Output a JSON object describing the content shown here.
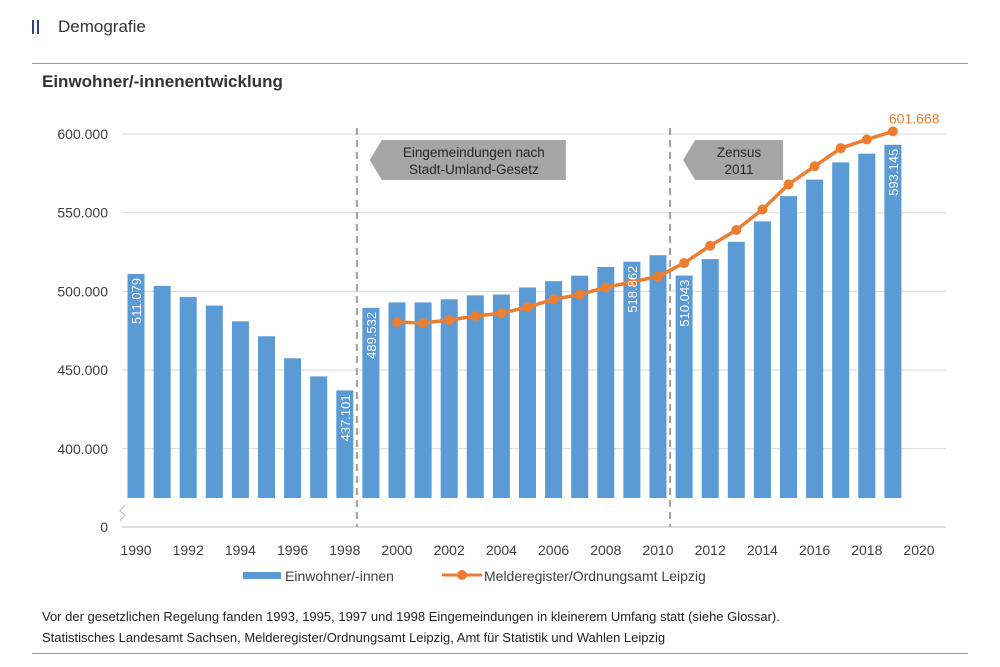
{
  "section": {
    "title": "Demografie",
    "icon": "section-marker-icon"
  },
  "chart_title": "Einwohner/-innenentwicklung",
  "colors": {
    "bars": "#5b9bd5",
    "line": "#ed7d31",
    "grid": "#d9d9d9",
    "annotation_fill": "#a6a6a6",
    "divider": "#8a9bb8"
  },
  "annotations": [
    {
      "text_line1": "Eingemeindungen nach",
      "text_line2": "Stadt-Umland-Gesetz",
      "at_year": 1998.5
    },
    {
      "text_line1": "Zensus",
      "text_line2": "2011",
      "at_year": 2010.5
    }
  ],
  "legend": {
    "bars_label": "Einwohner/-innen",
    "line_label": "Melderegister/Ordnungsamt Leipzig"
  },
  "footnote": {
    "line1": "Vor der gesetzlichen Regelung fanden 1993, 1995, 1997 und 1998 Eingemeindungen in kleinerem Umfang statt (siehe Glossar).",
    "line2": "Statistisches Landesamt Sachsen, Melderegister/Ordnungsamt Leipzig, Amt für Statistik und Wahlen Leipzig"
  },
  "chart_data": {
    "type": "bar",
    "title": "Einwohner/-innenentwicklung",
    "xlabel": "",
    "ylabel": "",
    "ylim": [
      0,
      600000
    ],
    "axis_break": true,
    "y_ticks": [
      0,
      400000,
      450000,
      500000,
      550000,
      600000
    ],
    "y_tick_labels": [
      "0",
      "400.000",
      "450.000",
      "500.000",
      "550.000",
      "600.000"
    ],
    "x_ticks": [
      1990,
      1992,
      1994,
      1996,
      1998,
      2000,
      2002,
      2004,
      2006,
      2008,
      2010,
      2012,
      2014,
      2016,
      2018,
      2020
    ],
    "x_tick_labels": [
      "1990",
      "1992",
      "1994",
      "1996",
      "1998",
      "2000",
      "2002",
      "2004",
      "2006",
      "2008",
      "2010",
      "2012",
      "2014",
      "2016",
      "2018",
      "2020"
    ],
    "grid": true,
    "legend_position": "bottom",
    "series": [
      {
        "name": "Einwohner/-innen",
        "type": "bar",
        "x": [
          1990,
          1991,
          1992,
          1993,
          1994,
          1995,
          1996,
          1997,
          1998,
          1999,
          2000,
          2001,
          2002,
          2003,
          2004,
          2005,
          2006,
          2007,
          2008,
          2009,
          2010,
          2011,
          2012,
          2013,
          2014,
          2015,
          2016,
          2017,
          2018,
          2019
        ],
        "values": [
          511079,
          503500,
          496500,
          491000,
          481000,
          471500,
          457500,
          446000,
          437101,
          489532,
          493000,
          493000,
          495000,
          497500,
          498000,
          502500,
          506500,
          510000,
          515500,
          518862,
          523000,
          510043,
          520500,
          531500,
          544500,
          560500,
          571000,
          582000,
          587500,
          593145
        ],
        "labels": {
          "1990": "511.079",
          "1998": "437.101",
          "1999": "489.532",
          "2009": "518.862",
          "2011": "510.043",
          "2019": "593.145"
        }
      },
      {
        "name": "Melderegister/Ordnungsamt Leipzig",
        "type": "line",
        "x": [
          2000,
          2001,
          2002,
          2003,
          2004,
          2005,
          2006,
          2007,
          2008,
          2009,
          2010,
          2011,
          2012,
          2013,
          2014,
          2015,
          2016,
          2017,
          2018,
          2019
        ],
        "values": [
          480500,
          479900,
          481800,
          484300,
          486200,
          490000,
          495000,
          498000,
          502500,
          506000,
          509500,
          518000,
          529000,
          539000,
          552000,
          568000,
          579500,
          591000,
          596500,
          601668
        ],
        "labels": {
          "2019": "601.668"
        }
      }
    ]
  }
}
